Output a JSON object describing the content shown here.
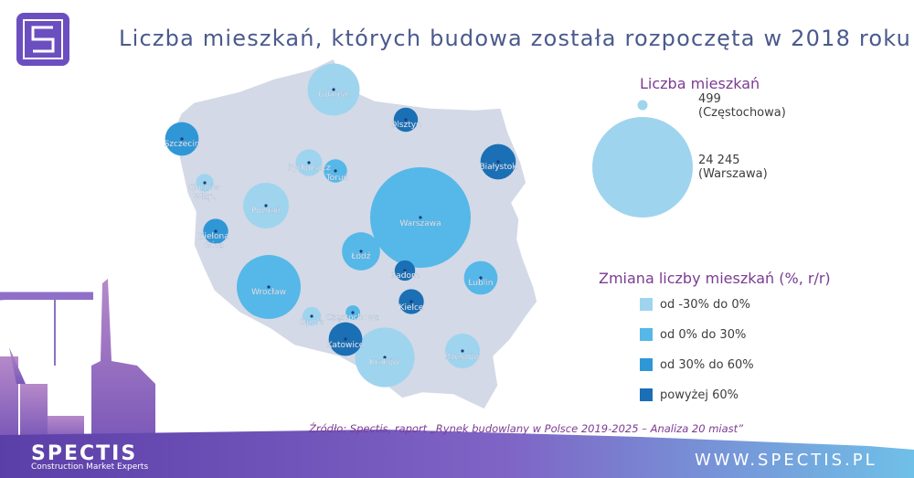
{
  "title": "Liczba mieszkań, których budowa została rozpoczęta w 2018 roku",
  "legend_size": {
    "title": "Liczba mieszkań",
    "min_value": "499",
    "min_city": "(Częstochowa)",
    "max_value": "24 245",
    "max_city": "(Warszawa)"
  },
  "legend_change": {
    "title": "Zmiana liczby mieszkań (%, r/r)",
    "items": [
      {
        "label": "od -30% do 0%",
        "color": "#9fd4ef"
      },
      {
        "label": "od 0% do 30%",
        "color": "#55b8e8"
      },
      {
        "label": "od 30% do 60%",
        "color": "#2f97d6"
      },
      {
        "label": "powyżej 60%",
        "color": "#1a6fb5"
      }
    ]
  },
  "source": "Źródło: Spectis, raport „Rynek budowlany w Polsce 2019-2025 – Analiza 20 miast”",
  "url": "WWW.SPECTIS.PL",
  "brand": "SPECTIS",
  "tagline": "Construction Market Experts",
  "chart_data": {
    "type": "scatter",
    "title": "Liczba mieszkań, których budowa została rozpoczęta w 2018 roku",
    "size_range": [
      499,
      24245
    ],
    "points": [
      {
        "city": "Gdańsk",
        "size": 6500,
        "category": 0
      },
      {
        "city": "Olsztyn",
        "size": 1400,
        "category": 3
      },
      {
        "city": "Szczecin",
        "size": 2700,
        "category": 2
      },
      {
        "city": "Białystok",
        "size": 3000,
        "category": 3
      },
      {
        "city": "Bydgoszcz",
        "size": 1700,
        "category": 0
      },
      {
        "city": "Toruń",
        "size": 1300,
        "category": 1
      },
      {
        "city": "Gorzów Wlkp.",
        "size": 760,
        "category": 0
      },
      {
        "city": "Poznań",
        "size": 5000,
        "category": 0
      },
      {
        "city": "Warszawa",
        "size": 24245,
        "category": 1
      },
      {
        "city": "Zielona Góra",
        "size": 1500,
        "category": 2
      },
      {
        "city": "Łódź",
        "size": 3500,
        "category": 1
      },
      {
        "city": "Radom",
        "size": 1000,
        "category": 3
      },
      {
        "city": "Lublin",
        "size": 2700,
        "category": 1
      },
      {
        "city": "Wrocław",
        "size": 9800,
        "category": 1
      },
      {
        "city": "Kielce",
        "size": 1500,
        "category": 3
      },
      {
        "city": "Opole",
        "size": 820,
        "category": 0
      },
      {
        "city": "Częstochowa",
        "size": 499,
        "category": 1
      },
      {
        "city": "Katowice",
        "size": 2700,
        "category": 3
      },
      {
        "city": "Kraków",
        "size": 8500,
        "category": 0
      },
      {
        "city": "Rzeszów",
        "size": 2900,
        "category": 0
      }
    ]
  }
}
